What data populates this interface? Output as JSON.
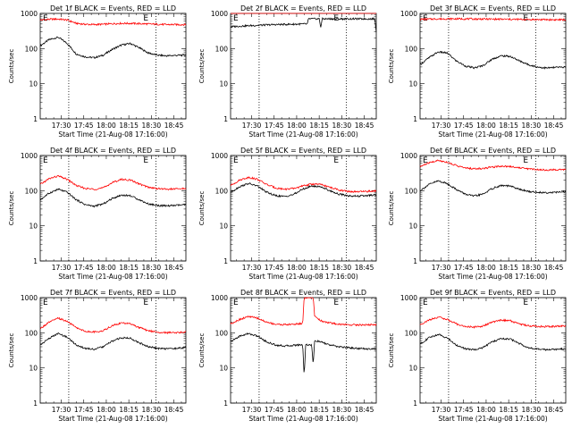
{
  "figure": {
    "background": "#ffffff",
    "series_colors": {
      "events": "#000000",
      "lld": "#ff0000"
    }
  },
  "chart_data": [
    {
      "type": "line",
      "title": "Det 1f BLACK = Events, RED = LLD",
      "xlabel": "Start Time (21-Aug-08 17:16:00)",
      "ylabel": "Counts/sec",
      "yscale": "log",
      "ylim": [
        1,
        1000
      ],
      "ytick_labels": [
        "1",
        "10",
        "100",
        "1000"
      ],
      "xlim": [
        "17:16",
        "18:53"
      ],
      "xtick_labels": [
        "17:30",
        "17:45",
        "18:00",
        "18:15",
        "18:30",
        "18:45"
      ],
      "dotted_vlines": [
        "17:35",
        "18:33"
      ],
      "markers": [
        "E",
        "E"
      ],
      "grid": false,
      "series": [
        {
          "x": [
            "17:16",
            "17:22",
            "17:28",
            "17:34",
            "17:40",
            "17:46",
            "17:52",
            "17:58",
            "18:04",
            "18:10",
            "18:16",
            "18:22",
            "18:28",
            "18:34",
            "18:40",
            "18:46",
            "18:53"
          ],
          "values": [
            120,
            180,
            210,
            140,
            70,
            58,
            55,
            65,
            95,
            125,
            140,
            105,
            75,
            65,
            62,
            64,
            65
          ]
        },
        {
          "x": [
            "17:16",
            "17:22",
            "17:28",
            "17:34",
            "17:40",
            "17:46",
            "17:52",
            "17:58",
            "18:04",
            "18:10",
            "18:16",
            "18:22",
            "18:28",
            "18:34",
            "18:40",
            "18:46",
            "18:53"
          ],
          "values": [
            650,
            680,
            690,
            650,
            520,
            490,
            480,
            490,
            510,
            520,
            520,
            510,
            500,
            490,
            480,
            480,
            480
          ]
        }
      ]
    },
    {
      "type": "line",
      "title": "Det 2f BLACK = Events, RED = LLD",
      "xlabel": "Start Time (21-Aug-08 17:16:00)",
      "ylabel": "Counts/sec",
      "yscale": "log",
      "ylim": [
        1,
        1000
      ],
      "ytick_labels": [
        "1",
        "10",
        "100",
        "1000"
      ],
      "xlim": [
        "17:16",
        "18:53"
      ],
      "xtick_labels": [
        "17:30",
        "17:45",
        "18:00",
        "18:15",
        "18:30",
        "18:45"
      ],
      "dotted_vlines": [
        "17:35",
        "18:33"
      ],
      "markers": [
        "E",
        "E"
      ],
      "grid": false,
      "series": [
        {
          "x": [
            "17:16",
            "17:25",
            "17:35",
            "17:45",
            "17:55",
            "18:05",
            "18:07",
            "18:08",
            "18:15",
            "18:16",
            "18:17",
            "18:25",
            "18:35",
            "18:45",
            "18:52",
            "18:53"
          ],
          "values": [
            420,
            440,
            460,
            480,
            490,
            500,
            500,
            700,
            700,
            400,
            700,
            700,
            700,
            700,
            700,
            300
          ]
        },
        {
          "x": [
            "17:16",
            "17:35",
            "17:55",
            "18:15",
            "18:35",
            "18:53"
          ],
          "values": [
            1050,
            1060,
            1070,
            1080,
            1070,
            1060
          ]
        }
      ]
    },
    {
      "type": "line",
      "title": "Det 3f BLACK = Events, RED = LLD",
      "xlabel": "Start Time (21-Aug-08 17:16:00)",
      "ylabel": "Counts/sec",
      "yscale": "log",
      "ylim": [
        1,
        1000
      ],
      "ytick_labels": [
        "1",
        "10",
        "100",
        "1000"
      ],
      "xlim": [
        "17:16",
        "18:53"
      ],
      "xtick_labels": [
        "17:30",
        "17:45",
        "18:00",
        "18:15",
        "18:30",
        "18:45"
      ],
      "dotted_vlines": [
        "17:35",
        "18:33"
      ],
      "markers": [
        "E",
        "E"
      ],
      "grid": false,
      "series": [
        {
          "x": [
            "17:16",
            "17:22",
            "17:28",
            "17:34",
            "17:40",
            "17:46",
            "17:52",
            "17:58",
            "18:04",
            "18:10",
            "18:16",
            "18:22",
            "18:28",
            "18:34",
            "18:40",
            "18:46",
            "18:53"
          ],
          "values": [
            35,
            55,
            80,
            75,
            45,
            32,
            28,
            33,
            50,
            62,
            60,
            45,
            35,
            30,
            28,
            29,
            30
          ]
        },
        {
          "x": [
            "17:16",
            "17:30",
            "17:45",
            "18:00",
            "18:15",
            "18:30",
            "18:45",
            "18:53"
          ],
          "values": [
            680,
            700,
            700,
            690,
            680,
            670,
            660,
            660
          ]
        }
      ]
    },
    {
      "type": "line",
      "title": "Det 4f BLACK = Events, RED = LLD",
      "xlabel": "Start Time (21-Aug-08 17:16:00)",
      "ylabel": "Counts/sec",
      "yscale": "log",
      "ylim": [
        1,
        1000
      ],
      "ytick_labels": [
        "1",
        "10",
        "100",
        "1000"
      ],
      "xlim": [
        "17:16",
        "18:53"
      ],
      "xtick_labels": [
        "17:30",
        "17:45",
        "18:00",
        "18:15",
        "18:30",
        "18:45"
      ],
      "dotted_vlines": [
        "17:35",
        "18:33"
      ],
      "markers": [
        "E",
        "E"
      ],
      "grid": false,
      "series": [
        {
          "x": [
            "17:16",
            "17:22",
            "17:28",
            "17:34",
            "17:40",
            "17:46",
            "17:52",
            "17:58",
            "18:04",
            "18:10",
            "18:16",
            "18:22",
            "18:28",
            "18:34",
            "18:40",
            "18:46",
            "18:53"
          ],
          "values": [
            55,
            85,
            110,
            90,
            55,
            40,
            36,
            42,
            60,
            75,
            72,
            55,
            42,
            38,
            37,
            38,
            40
          ]
        },
        {
          "x": [
            "17:16",
            "17:22",
            "17:28",
            "17:34",
            "17:40",
            "17:46",
            "17:52",
            "17:58",
            "18:04",
            "18:10",
            "18:16",
            "18:22",
            "18:28",
            "18:34",
            "18:40",
            "18:46",
            "18:53"
          ],
          "values": [
            150,
            220,
            260,
            210,
            140,
            115,
            110,
            120,
            170,
            210,
            200,
            155,
            125,
            115,
            110,
            112,
            115
          ]
        }
      ]
    },
    {
      "type": "line",
      "title": "Det 5f BLACK = Events, RED = LLD",
      "xlabel": "Start Time (21-Aug-08 17:16:00)",
      "ylabel": "Counts/sec",
      "yscale": "log",
      "ylim": [
        1,
        1000
      ],
      "ytick_labels": [
        "1",
        "10",
        "100",
        "1000"
      ],
      "xlim": [
        "17:16",
        "18:53"
      ],
      "xtick_labels": [
        "17:30",
        "17:45",
        "18:00",
        "18:15",
        "18:30",
        "18:45"
      ],
      "dotted_vlines": [
        "17:35",
        "18:33"
      ],
      "markers": [
        "E",
        "E"
      ],
      "grid": false,
      "series": [
        {
          "x": [
            "17:16",
            "17:22",
            "17:28",
            "17:34",
            "17:40",
            "17:46",
            "17:52",
            "17:58",
            "18:04",
            "18:10",
            "18:16",
            "18:22",
            "18:28",
            "18:34",
            "18:40",
            "18:46",
            "18:53"
          ],
          "values": [
            90,
            130,
            160,
            135,
            90,
            72,
            68,
            78,
            110,
            135,
            130,
            100,
            80,
            72,
            70,
            72,
            75
          ]
        },
        {
          "x": [
            "17:16",
            "17:22",
            "17:28",
            "17:34",
            "17:40",
            "17:46",
            "17:52",
            "17:58",
            "18:04",
            "18:10",
            "18:16",
            "18:22",
            "18:28",
            "18:34",
            "18:40",
            "18:46",
            "18:53"
          ],
          "values": [
            140,
            200,
            240,
            210,
            150,
            120,
            110,
            115,
            135,
            155,
            150,
            125,
            105,
            95,
            92,
            95,
            98
          ]
        }
      ]
    },
    {
      "type": "line",
      "title": "Det 6f BLACK = Events, RED = LLD",
      "xlabel": "Start Time (21-Aug-08 17:16:00)",
      "ylabel": "Counts/sec",
      "yscale": "log",
      "ylim": [
        1,
        1000
      ],
      "ytick_labels": [
        "1",
        "10",
        "100",
        "1000"
      ],
      "xlim": [
        "17:16",
        "18:53"
      ],
      "xtick_labels": [
        "17:30",
        "17:45",
        "18:00",
        "18:15",
        "18:30",
        "18:45"
      ],
      "dotted_vlines": [
        "17:35",
        "18:33"
      ],
      "markers": [
        "E",
        "E"
      ],
      "grid": false,
      "series": [
        {
          "x": [
            "17:16",
            "17:22",
            "17:28",
            "17:34",
            "17:40",
            "17:46",
            "17:52",
            "17:58",
            "18:04",
            "18:10",
            "18:16",
            "18:22",
            "18:28",
            "18:34",
            "18:40",
            "18:46",
            "18:53"
          ],
          "values": [
            100,
            150,
            190,
            160,
            110,
            80,
            70,
            80,
            115,
            140,
            135,
            110,
            95,
            90,
            88,
            90,
            92
          ]
        },
        {
          "x": [
            "17:16",
            "17:22",
            "17:28",
            "17:34",
            "17:40",
            "17:46",
            "17:52",
            "17:58",
            "18:04",
            "18:10",
            "18:16",
            "18:22",
            "18:28",
            "18:34",
            "18:40",
            "18:46",
            "18:53"
          ],
          "values": [
            480,
            620,
            720,
            650,
            520,
            440,
            420,
            430,
            470,
            500,
            490,
            450,
            420,
            400,
            390,
            395,
            400
          ]
        }
      ]
    },
    {
      "type": "line",
      "title": "Det 7f BLACK = Events, RED = LLD",
      "xlabel": "Start Time (21-Aug-08 17:16:00)",
      "ylabel": "Counts/sec",
      "yscale": "log",
      "ylim": [
        1,
        1000
      ],
      "ytick_labels": [
        "1",
        "10",
        "100",
        "1000"
      ],
      "xlim": [
        "17:16",
        "18:53"
      ],
      "xtick_labels": [
        "17:30",
        "17:45",
        "18:00",
        "18:15",
        "18:30",
        "18:45"
      ],
      "dotted_vlines": [
        "17:35",
        "18:33"
      ],
      "markers": [
        "E",
        "E"
      ],
      "grid": false,
      "series": [
        {
          "x": [
            "17:16",
            "17:22",
            "17:28",
            "17:34",
            "17:40",
            "17:46",
            "17:52",
            "17:58",
            "18:04",
            "18:10",
            "18:16",
            "18:22",
            "18:28",
            "18:34",
            "18:40",
            "18:46",
            "18:53"
          ],
          "values": [
            45,
            70,
            95,
            75,
            45,
            36,
            34,
            40,
            58,
            72,
            70,
            52,
            40,
            36,
            35,
            36,
            38
          ]
        },
        {
          "x": [
            "17:16",
            "17:22",
            "17:28",
            "17:34",
            "17:40",
            "17:46",
            "17:52",
            "17:58",
            "18:04",
            "18:10",
            "18:16",
            "18:22",
            "18:28",
            "18:34",
            "18:40",
            "18:46",
            "18:53"
          ],
          "values": [
            130,
            200,
            260,
            210,
            140,
            110,
            105,
            115,
            160,
            190,
            180,
            140,
            115,
            105,
            100,
            102,
            105
          ]
        }
      ]
    },
    {
      "type": "line",
      "title": "Det 8f BLACK = Events, RED = LLD",
      "xlabel": "Start Time (21-Aug-08 17:16:00)",
      "ylabel": "Counts/sec",
      "yscale": "log",
      "ylim": [
        1,
        1000
      ],
      "ytick_labels": [
        "1",
        "10",
        "100",
        "1000"
      ],
      "xlim": [
        "17:16",
        "18:53"
      ],
      "xtick_labels": [
        "17:30",
        "17:45",
        "18:00",
        "18:15",
        "18:30",
        "18:45"
      ],
      "dotted_vlines": [
        "17:35",
        "18:33"
      ],
      "markers": [
        "E",
        "E"
      ],
      "grid": false,
      "series": [
        {
          "x": [
            "17:16",
            "17:22",
            "17:28",
            "17:34",
            "17:40",
            "17:46",
            "17:52",
            "17:58",
            "18:04",
            "18:05",
            "18:06",
            "18:10",
            "18:11",
            "18:12",
            "18:16",
            "18:22",
            "18:28",
            "18:34",
            "18:40",
            "18:46",
            "18:53"
          ],
          "values": [
            55,
            80,
            95,
            80,
            55,
            45,
            42,
            44,
            46,
            6,
            46,
            45,
            12,
            60,
            55,
            45,
            40,
            38,
            36,
            35,
            35
          ]
        },
        {
          "x": [
            "17:16",
            "17:22",
            "17:28",
            "17:34",
            "17:40",
            "17:46",
            "17:52",
            "17:58",
            "18:04",
            "18:05",
            "18:06",
            "18:10",
            "18:11",
            "18:12",
            "18:16",
            "18:22",
            "18:28",
            "18:34",
            "18:40",
            "18:46",
            "18:53"
          ],
          "values": [
            180,
            240,
            290,
            260,
            200,
            175,
            170,
            175,
            185,
            1000,
            1000,
            1000,
            1000,
            300,
            220,
            190,
            175,
            170,
            168,
            168,
            170
          ]
        }
      ]
    },
    {
      "type": "line",
      "title": "Det 9f BLACK = Events, RED = LLD",
      "xlabel": "Start Time (21-Aug-08 17:16:00)",
      "ylabel": "Counts/sec",
      "yscale": "log",
      "ylim": [
        1,
        1000
      ],
      "ytick_labels": [
        "1",
        "10",
        "100",
        "1000"
      ],
      "xlim": [
        "17:16",
        "18:53"
      ],
      "xtick_labels": [
        "17:30",
        "17:45",
        "18:00",
        "18:15",
        "18:30",
        "18:45"
      ],
      "dotted_vlines": [
        "17:35",
        "18:33"
      ],
      "markers": [
        "E",
        "E"
      ],
      "grid": false,
      "series": [
        {
          "x": [
            "17:16",
            "17:22",
            "17:28",
            "17:34",
            "17:40",
            "17:46",
            "17:52",
            "17:58",
            "18:04",
            "18:10",
            "18:16",
            "18:22",
            "18:28",
            "18:34",
            "18:40",
            "18:46",
            "18:53"
          ],
          "values": [
            48,
            72,
            90,
            72,
            45,
            35,
            33,
            38,
            55,
            68,
            66,
            50,
            38,
            34,
            33,
            34,
            35
          ]
        },
        {
          "x": [
            "17:16",
            "17:22",
            "17:28",
            "17:34",
            "17:40",
            "17:46",
            "17:52",
            "17:58",
            "18:04",
            "18:10",
            "18:16",
            "18:22",
            "18:28",
            "18:34",
            "18:40",
            "18:46",
            "18:53"
          ],
          "values": [
            170,
            230,
            280,
            240,
            180,
            150,
            145,
            155,
            200,
            230,
            220,
            180,
            160,
            152,
            150,
            152,
            155
          ]
        }
      ]
    }
  ]
}
